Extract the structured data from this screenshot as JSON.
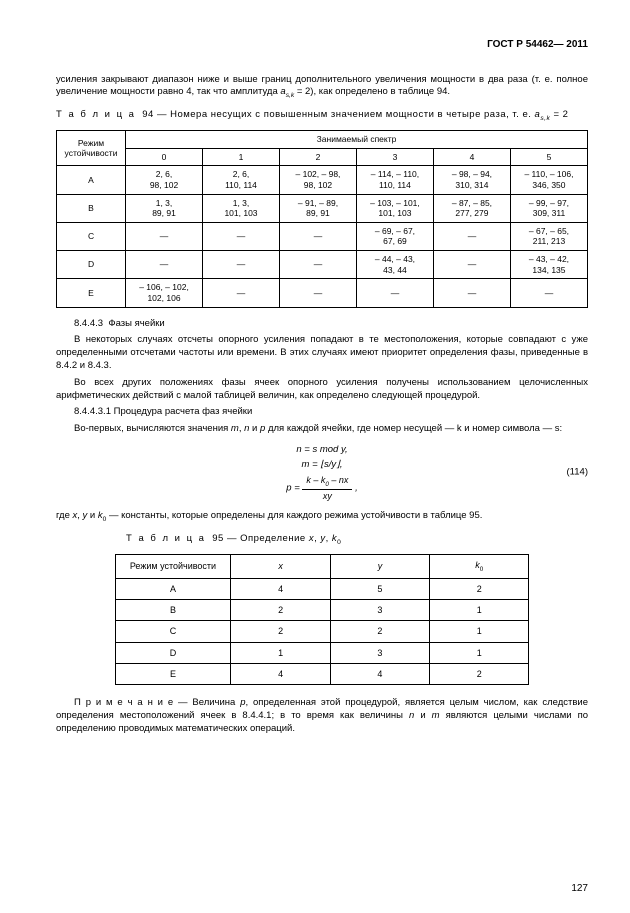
{
  "header": "ГОСТ Р 54462— 2011",
  "intro_para": "усиления закрывают диапазон ниже и выше границ дополнительного увеличения мощности в два раза (т. е. полное увеличение мощности равно 4, так что амплитуда a_{s,k} = 2), как определено в таблице 94.",
  "table94": {
    "caption_prefix": "Т а б л и ц а",
    "caption_num": "94",
    "caption_rest": "— Номера несущих с повышенным значением мощности в четыре раза, т. е. a_{s,k} = 2",
    "mode_header": "Режим устойчивости",
    "spectrum_header": "Занимаемый спектр",
    "spec_cols": [
      "0",
      "1",
      "2",
      "3",
      "4",
      "5"
    ],
    "rows": [
      {
        "mode": "A",
        "cells": [
          "2, 6,\n98, 102",
          "2, 6,\n110, 114",
          "– 102, – 98,\n98, 102",
          "– 114, – 110,\n110, 114",
          "– 98, – 94,\n310, 314",
          "– 110, – 106,\n346, 350"
        ]
      },
      {
        "mode": "B",
        "cells": [
          "1, 3,\n89, 91",
          "1, 3,\n101, 103",
          "– 91, – 89,\n89, 91",
          "– 103, – 101,\n101, 103",
          "– 87, – 85,\n277, 279",
          "– 99, – 97,\n309, 311"
        ]
      },
      {
        "mode": "C",
        "cells": [
          "—",
          "—",
          "—",
          "– 69, – 67,\n67, 69",
          "—",
          "– 67, – 65,\n211, 213"
        ]
      },
      {
        "mode": "D",
        "cells": [
          "—",
          "—",
          "—",
          "– 44, – 43,\n43, 44",
          "—",
          "– 43, – 42,\n134, 135"
        ]
      },
      {
        "mode": "E",
        "cells": [
          "– 106, – 102,\n102, 106",
          "—",
          "—",
          "—",
          "—",
          "—"
        ]
      }
    ]
  },
  "section": {
    "s8443_num": "8.4.4.3",
    "s8443_title": "Фазы ячейки",
    "p1": "В некоторых случаях отсчеты опорного усиления попадают в те местоположения, которые совпадают с уже определенными отсчетами частоты или времени. В этих случаях имеют приоритет определения фазы, приведенные в 8.4.2 и 8.4.3.",
    "p2": "Во всех других положениях фазы ячеек опорного усиления получены использованием целочисленных арифметических действий с малой таблицей величин, как определено следующей процедурой.",
    "s84431_num": "8.4.4.3.1",
    "s84431_title": "Процедура расчета фаз ячейки",
    "p3": "Во-первых, вычисляются значения m, n и p для каждой ячейки, где номер несущей — k и номер символа — s:"
  },
  "equations": {
    "eq1": "n = s mod y,",
    "eq2": "m = ⌊s/y⌋,",
    "eq3_lhs": "p =",
    "eq3_num": "k – k₀ – nx",
    "eq3_den": "xy",
    "eq_number": "(114)"
  },
  "after_eq": "где x, y и k₀ — константы, которые определены для каждого режима устойчивости в таблице 95.",
  "table95": {
    "caption_prefix": "Т а б л и ц а",
    "caption_num": "95",
    "caption_rest": "— Определение x, y, k₀",
    "headers": [
      "Режим устойчивости",
      "x",
      "y",
      "k₀"
    ],
    "rows": [
      [
        "A",
        "4",
        "5",
        "2"
      ],
      [
        "B",
        "2",
        "3",
        "1"
      ],
      [
        "C",
        "2",
        "2",
        "1"
      ],
      [
        "D",
        "1",
        "3",
        "1"
      ],
      [
        "E",
        "4",
        "4",
        "2"
      ]
    ]
  },
  "note": "П р и м е ч а н и е — Величина p, определенная этой процедурой, является целым числом, как следствие определения местоположений ячеек в 8.4.4.1; в то время как величины n и m являются целыми числами по определению проводимых математических операций.",
  "page_number": "127"
}
